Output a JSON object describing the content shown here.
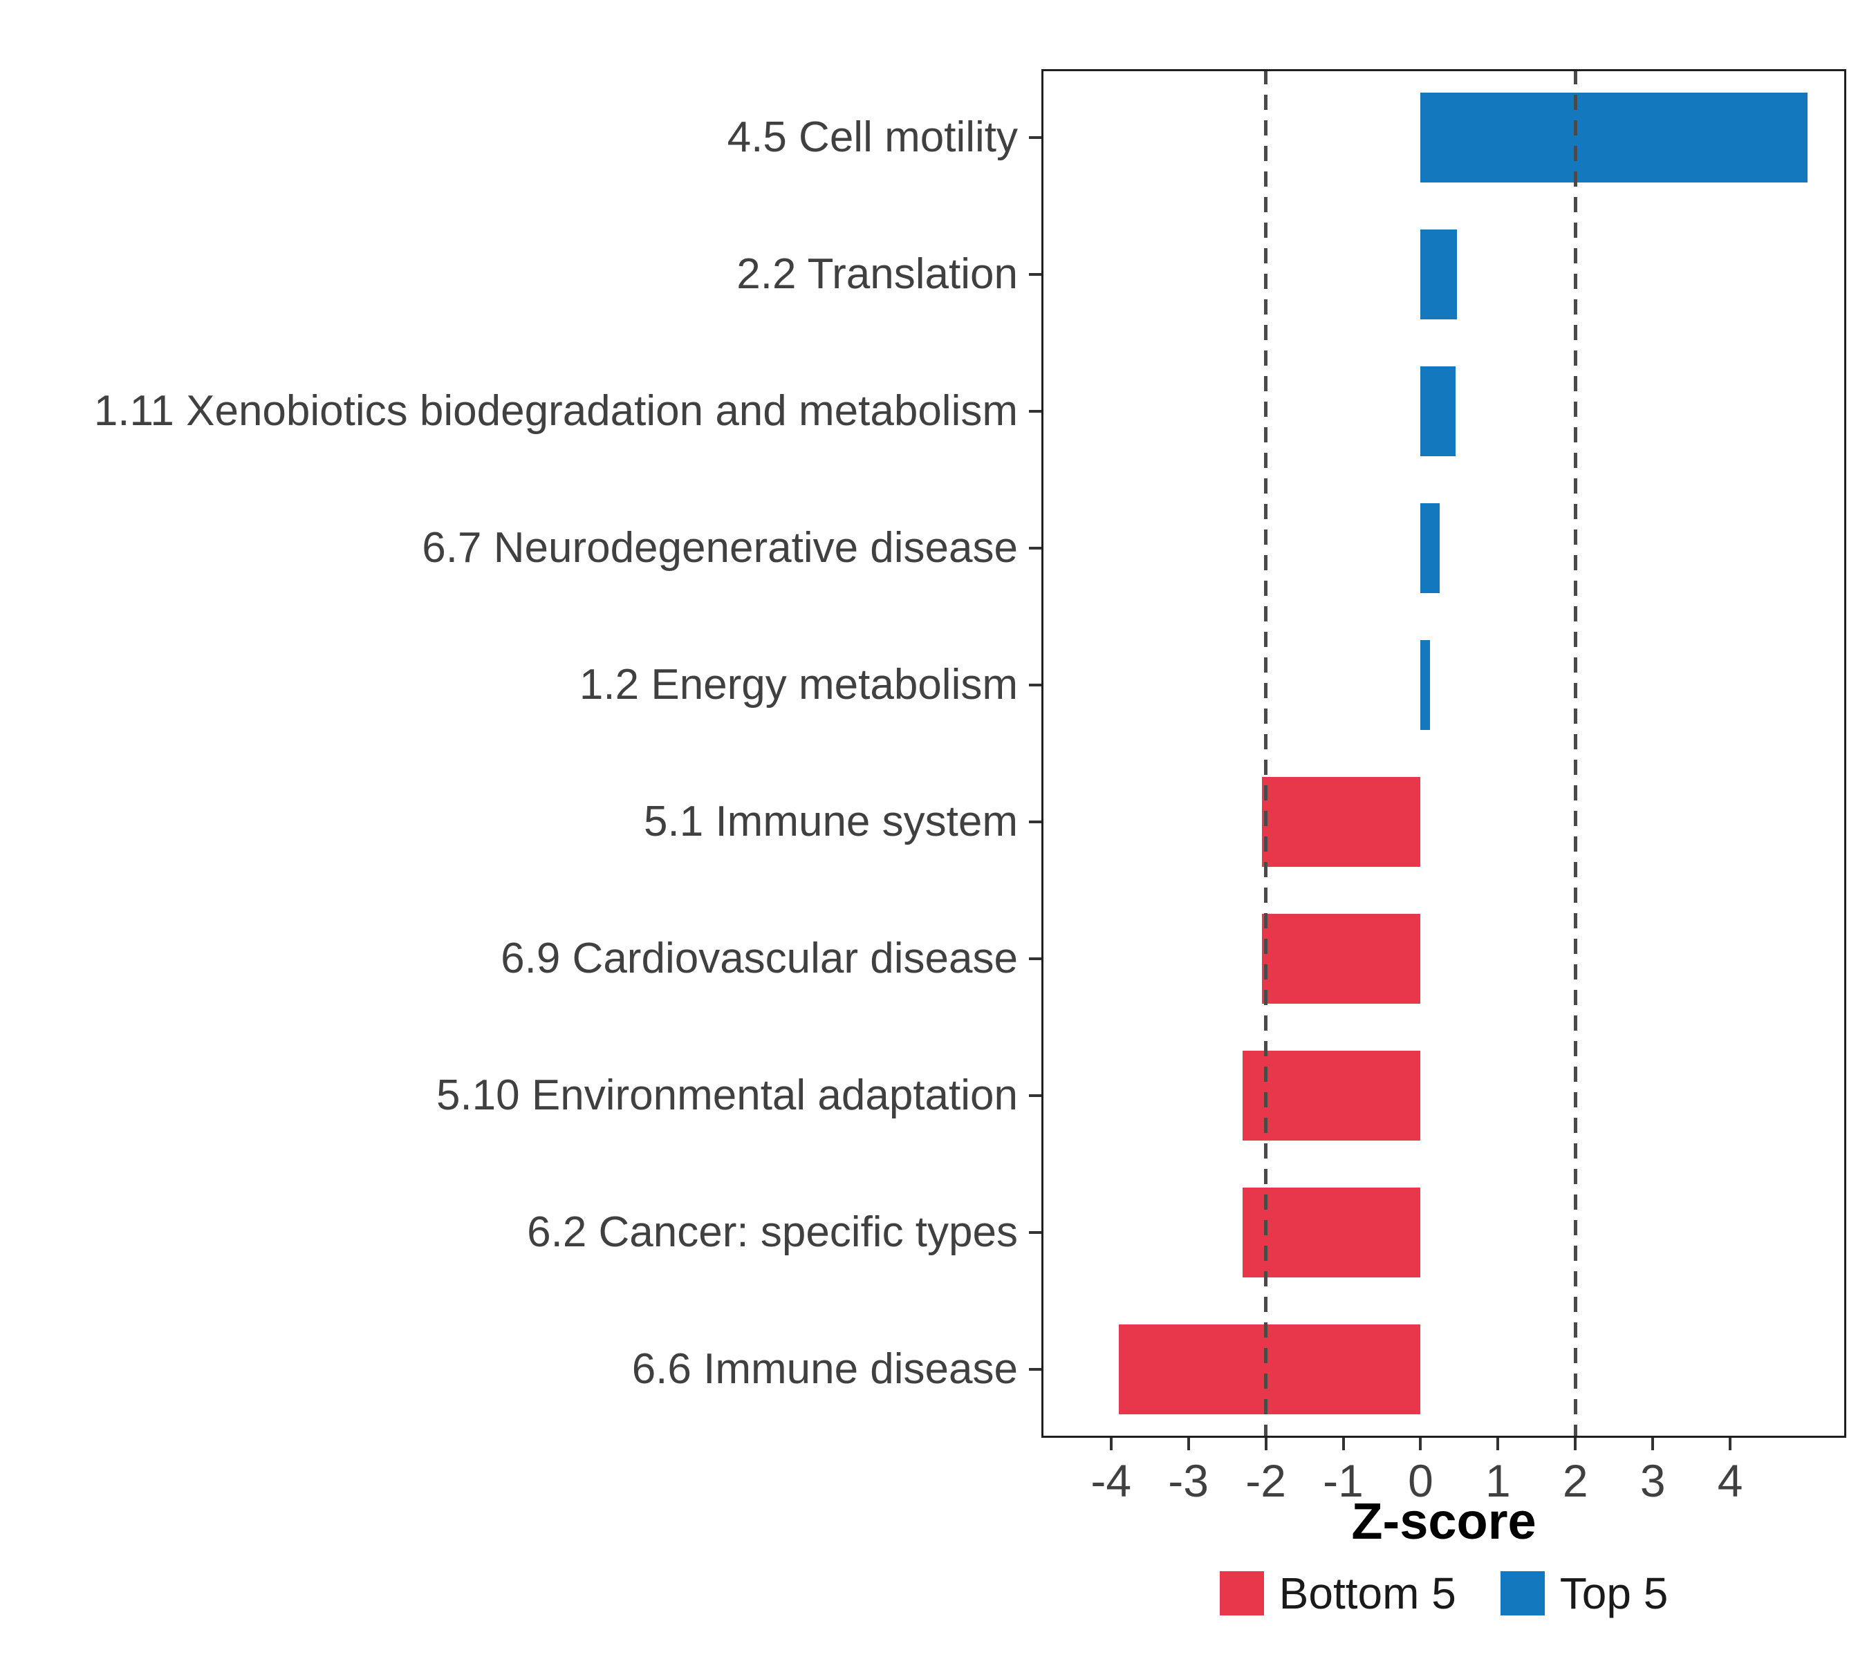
{
  "chart_data": {
    "type": "bar",
    "orientation": "horizontal",
    "title": "",
    "xlabel": "Z-score",
    "categories": [
      "4.5 Cell motility",
      "2.2 Translation",
      "1.11 Xenobiotics biodegradation and metabolism",
      "6.7 Neurodegenerative disease",
      "1.2 Energy metabolism",
      "5.1 Immune system",
      "6.9 Cardiovascular disease",
      "5.10 Environmental adaptation",
      "6.2 Cancer: specific types",
      "6.6 Immune disease"
    ],
    "values": [
      5.0,
      0.47,
      0.45,
      0.25,
      0.12,
      -2.05,
      -2.05,
      -2.3,
      -2.3,
      -3.9
    ],
    "groups": [
      "Top 5",
      "Top 5",
      "Top 5",
      "Top 5",
      "Top 5",
      "Bottom 5",
      "Bottom 5",
      "Bottom 5",
      "Bottom 5",
      "Bottom 5"
    ],
    "x_ticks": [
      -4,
      -3,
      -2,
      -1,
      0,
      1,
      2,
      3,
      4
    ],
    "xlim": [
      -4.9,
      5.5
    ],
    "vlines": [
      -2,
      2
    ],
    "grid": false,
    "colors": {
      "Top 5": "#1478BE",
      "Bottom 5": "#E8374A"
    },
    "legend_position": "bottom",
    "legend": [
      {
        "label": "Bottom 5",
        "group": "Bottom 5"
      },
      {
        "label": "Top 5",
        "group": "Top 5"
      }
    ]
  }
}
